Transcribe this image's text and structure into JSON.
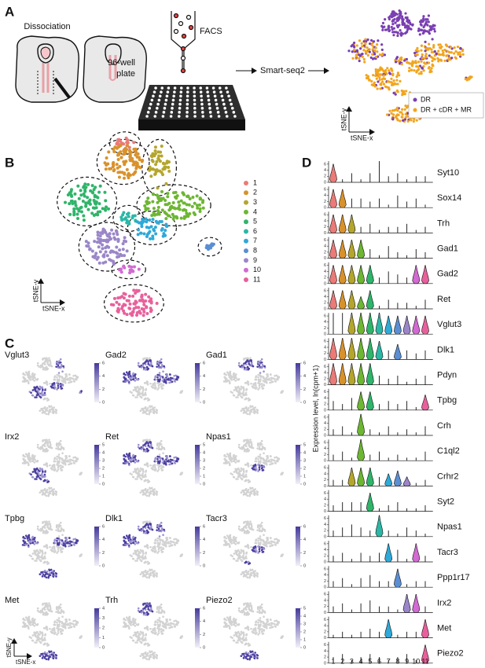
{
  "panel_labels": [
    "A",
    "B",
    "C",
    "D"
  ],
  "panel_a": {
    "dissociation": "Dissociation",
    "facs": "FACS",
    "plate": [
      "96-well",
      "plate"
    ],
    "method": "Smart-seq2",
    "legend": [
      {
        "name": "DR",
        "color": "#7a3fb3"
      },
      {
        "name": "DR + cDR + MR",
        "color": "#f2a51d"
      }
    ],
    "x_axis": "tSNE-x",
    "y_axis": "tSNE-y"
  },
  "panel_b": {
    "clusters": [
      {
        "label": "1",
        "color": "#ea7b78"
      },
      {
        "label": "2",
        "color": "#d8922c"
      },
      {
        "label": "3",
        "color": "#b4a62c"
      },
      {
        "label": "4",
        "color": "#6db632"
      },
      {
        "label": "5",
        "color": "#2fb46a"
      },
      {
        "label": "6",
        "color": "#2bb7a6"
      },
      {
        "label": "7",
        "color": "#2fa9d8"
      },
      {
        "label": "8",
        "color": "#5b8ed2"
      },
      {
        "label": "9",
        "color": "#9a86c8"
      },
      {
        "label": "10",
        "color": "#d26ad2"
      },
      {
        "label": "11",
        "color": "#e8609b"
      }
    ],
    "x_axis": "tSNE-x",
    "y_axis": "tSNE-y"
  },
  "panel_c": {
    "plots": [
      {
        "gene": "Vglut3",
        "ticks": [
          6,
          4,
          2,
          0
        ]
      },
      {
        "gene": "Gad2",
        "ticks": [
          6,
          4,
          2,
          0
        ]
      },
      {
        "gene": "Gad1",
        "ticks": [
          6,
          4,
          2,
          0
        ]
      },
      {
        "gene": "Irx2",
        "ticks": [
          5,
          4,
          3,
          2,
          1,
          0
        ]
      },
      {
        "gene": "Ret",
        "ticks": [
          5,
          4,
          3,
          2,
          1,
          0
        ]
      },
      {
        "gene": "Npas1",
        "ticks": [
          5,
          4,
          3,
          2,
          1,
          0
        ]
      },
      {
        "gene": "Tpbg",
        "ticks": [
          6,
          4,
          2,
          0
        ]
      },
      {
        "gene": "Dlk1",
        "ticks": [
          6,
          4,
          2,
          0
        ]
      },
      {
        "gene": "Tacr3",
        "ticks": [
          6,
          4,
          2,
          0
        ]
      },
      {
        "gene": "Met",
        "ticks": [
          4,
          3,
          2,
          1,
          0
        ]
      },
      {
        "gene": "Trh",
        "ticks": [
          6,
          4,
          2,
          0
        ]
      },
      {
        "gene": "Piezo2",
        "ticks": [
          5,
          4,
          3,
          2,
          1,
          0
        ]
      }
    ],
    "x_axis": "tSNE-x",
    "y_axis": "tSNE-y"
  },
  "panel_d": {
    "type": "violin",
    "y_label": "Expression level, ln(cpm+1)",
    "categories": [
      "1",
      "2",
      "3",
      "4",
      "5",
      "6",
      "7",
      "8",
      "9",
      "10",
      "11"
    ],
    "ylim": [
      0,
      7
    ],
    "yticks": [
      0,
      2,
      4,
      6
    ],
    "genes": [
      {
        "name": "Syt10",
        "values": [
          6,
          1,
          3,
          1,
          3,
          7,
          2,
          3,
          1,
          2,
          2
        ],
        "expressed": [
          1
        ]
      },
      {
        "name": "Sox14",
        "values": [
          6,
          6,
          3,
          3,
          2,
          3,
          1,
          4,
          2,
          3,
          1
        ],
        "expressed": [
          1,
          2
        ]
      },
      {
        "name": "Trh",
        "values": [
          6,
          6,
          6,
          2,
          3,
          1,
          2,
          2,
          3,
          1,
          2
        ],
        "expressed": [
          1,
          2,
          3
        ]
      },
      {
        "name": "Gad1",
        "values": [
          6,
          6,
          6,
          6,
          3,
          1,
          4,
          2,
          1,
          3,
          2
        ],
        "expressed": [
          1,
          2,
          3,
          4
        ]
      },
      {
        "name": "Gad2",
        "values": [
          6,
          6,
          6,
          6,
          6,
          2,
          4,
          3,
          2,
          6,
          6
        ],
        "expressed": [
          1,
          2,
          3,
          4,
          5,
          10,
          11
        ]
      },
      {
        "name": "Ret",
        "values": [
          6,
          6,
          6,
          4,
          6,
          1,
          3,
          2,
          2,
          1,
          3
        ],
        "expressed": [
          1,
          2,
          3,
          4,
          5
        ]
      },
      {
        "name": "Vglut3",
        "values": [
          7,
          7,
          7,
          7,
          7,
          7,
          6,
          6,
          6,
          6,
          6
        ],
        "expressed": [
          3,
          4,
          5,
          6,
          7,
          8,
          9,
          10,
          11
        ]
      },
      {
        "name": "Dlk1",
        "values": [
          7,
          7,
          7,
          7,
          7,
          6,
          3,
          5,
          3,
          2,
          3
        ],
        "expressed": [
          1,
          2,
          3,
          4,
          5,
          6,
          8
        ]
      },
      {
        "name": "Pdyn",
        "values": [
          7,
          7,
          7,
          7,
          7,
          3,
          2,
          3,
          1,
          2,
          3
        ],
        "expressed": [
          1,
          2,
          3,
          4,
          5
        ]
      },
      {
        "name": "Tpbg",
        "values": [
          3,
          2,
          4,
          6,
          6,
          2,
          3,
          2,
          3,
          1,
          5
        ],
        "expressed": [
          4,
          5,
          11
        ]
      },
      {
        "name": "Crh",
        "values": [
          2,
          3,
          1,
          7,
          2,
          1,
          3,
          1,
          2,
          1,
          3
        ],
        "expressed": [
          4
        ]
      },
      {
        "name": "C1ql2",
        "values": [
          2,
          3,
          1,
          7,
          2,
          3,
          1,
          2,
          1,
          1,
          3
        ],
        "expressed": [
          4
        ]
      },
      {
        "name": "Crhr2",
        "values": [
          2,
          2,
          6,
          6,
          6,
          3,
          4,
          5,
          3,
          1,
          2
        ],
        "expressed": [
          3,
          4,
          5,
          7,
          8,
          9
        ]
      },
      {
        "name": "Syt2",
        "values": [
          2,
          3,
          3,
          3,
          6,
          1,
          2,
          3,
          1,
          1,
          2
        ],
        "expressed": [
          5
        ]
      },
      {
        "name": "Npas1",
        "values": [
          2,
          3,
          4,
          3,
          2,
          7,
          2,
          1,
          3,
          2,
          1
        ],
        "expressed": [
          6
        ]
      },
      {
        "name": "Tacr3",
        "values": [
          2,
          3,
          1,
          3,
          2,
          3,
          6,
          4,
          1,
          6,
          2
        ],
        "expressed": [
          7,
          10
        ]
      },
      {
        "name": "Ppp1r17",
        "values": [
          2,
          3,
          1,
          3,
          4,
          2,
          2,
          6,
          1,
          2,
          2
        ],
        "expressed": [
          8
        ]
      },
      {
        "name": "Irx2",
        "values": [
          2,
          3,
          1,
          3,
          4,
          2,
          2,
          1,
          6,
          6,
          2
        ],
        "expressed": [
          9,
          10
        ]
      },
      {
        "name": "Met",
        "values": [
          1,
          2,
          1,
          2,
          3,
          2,
          6,
          1,
          2,
          2,
          6
        ],
        "expressed": [
          7,
          11
        ]
      },
      {
        "name": "Piezo2",
        "values": [
          2,
          3,
          1,
          2,
          3,
          2,
          1,
          2,
          3,
          1,
          6
        ],
        "expressed": [
          11
        ]
      }
    ]
  }
}
